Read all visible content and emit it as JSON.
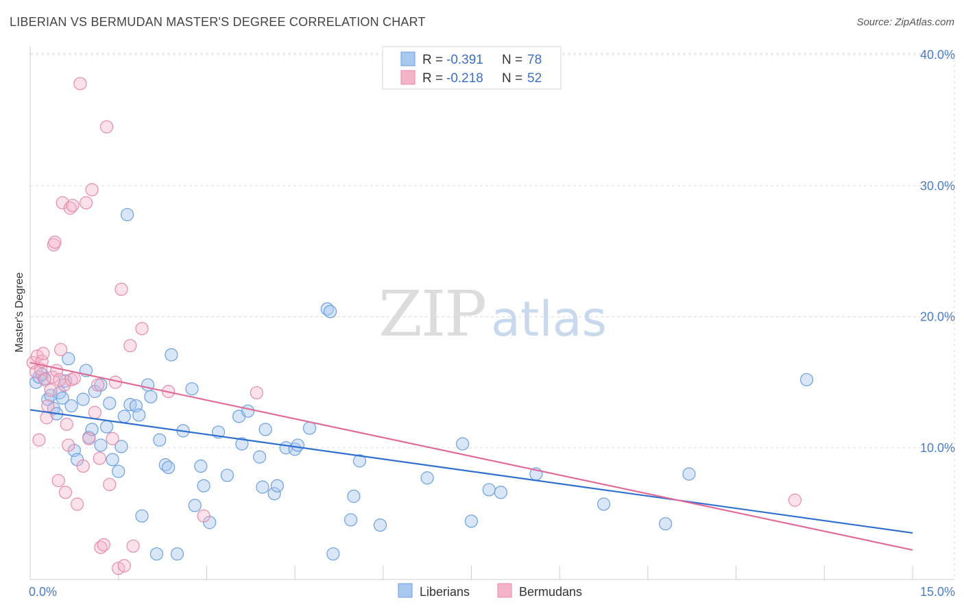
{
  "title": "LIBERIAN VS BERMUDAN MASTER'S DEGREE CORRELATION CHART",
  "source": "Source: ZipAtlas.com",
  "watermark": {
    "part1": "ZIP",
    "part2": "atlas"
  },
  "legend": {
    "rows": [
      {
        "r_label": "R = ",
        "r_value": "-0.391",
        "n_label": "N = ",
        "n_value": "78",
        "color": "#a9c8f0"
      },
      {
        "r_label": "R = ",
        "r_value": "-0.218",
        "n_label": "N = ",
        "n_value": "52",
        "color": "#f5b3c8"
      }
    ]
  },
  "chart_data": {
    "type": "scatter",
    "title": "LIBERIAN VS BERMUDAN MASTER'S DEGREE CORRELATION CHART",
    "xlabel": "",
    "ylabel": "Master's Degree",
    "xlim": [
      0,
      15
    ],
    "ylim": [
      0,
      40
    ],
    "x_tick_labels": [
      "0.0%",
      "15.0%"
    ],
    "y_ticks": [
      10,
      20,
      30,
      40
    ],
    "y_tick_labels": [
      "10.0%",
      "20.0%",
      "30.0%",
      "40.0%"
    ],
    "grid": true,
    "series": [
      {
        "name": "Liberians",
        "color": "#6a9fe0",
        "line_color": "#2f6fd0",
        "trend": {
          "x": [
            0,
            15
          ],
          "y": [
            12.9,
            3.5
          ]
        },
        "points": [
          [
            0.1,
            15.0
          ],
          [
            0.15,
            15.4
          ],
          [
            0.25,
            15.3
          ],
          [
            0.3,
            13.7
          ],
          [
            0.35,
            14.0
          ],
          [
            0.4,
            13.0
          ],
          [
            0.45,
            12.6
          ],
          [
            0.5,
            14.2
          ],
          [
            0.6,
            15.1
          ],
          [
            0.65,
            16.8
          ],
          [
            0.7,
            13.2
          ],
          [
            0.75,
            9.8
          ],
          [
            0.8,
            9.1
          ],
          [
            0.9,
            13.7
          ],
          [
            0.95,
            15.9
          ],
          [
            1.0,
            10.8
          ],
          [
            1.05,
            11.4
          ],
          [
            1.1,
            14.3
          ],
          [
            1.2,
            10.2
          ],
          [
            1.2,
            14.8
          ],
          [
            1.3,
            11.6
          ],
          [
            1.35,
            13.4
          ],
          [
            1.4,
            9.1
          ],
          [
            1.5,
            8.2
          ],
          [
            1.55,
            10.1
          ],
          [
            1.6,
            12.4
          ],
          [
            1.65,
            27.8
          ],
          [
            1.7,
            13.3
          ],
          [
            1.8,
            13.2
          ],
          [
            1.85,
            12.5
          ],
          [
            1.9,
            4.8
          ],
          [
            2.0,
            14.8
          ],
          [
            2.05,
            13.9
          ],
          [
            2.15,
            1.9
          ],
          [
            2.2,
            10.6
          ],
          [
            2.3,
            8.7
          ],
          [
            2.35,
            8.5
          ],
          [
            2.4,
            17.1
          ],
          [
            2.5,
            1.9
          ],
          [
            2.6,
            11.3
          ],
          [
            2.75,
            14.5
          ],
          [
            2.8,
            5.6
          ],
          [
            2.9,
            8.6
          ],
          [
            2.95,
            7.1
          ],
          [
            3.05,
            4.3
          ],
          [
            3.2,
            11.2
          ],
          [
            3.35,
            7.9
          ],
          [
            3.55,
            12.4
          ],
          [
            3.6,
            10.3
          ],
          [
            3.7,
            12.8
          ],
          [
            3.9,
            9.3
          ],
          [
            3.95,
            7.0
          ],
          [
            4.0,
            11.4
          ],
          [
            4.15,
            6.5
          ],
          [
            4.2,
            7.1
          ],
          [
            4.35,
            10.0
          ],
          [
            4.5,
            9.9
          ],
          [
            4.55,
            10.2
          ],
          [
            4.75,
            11.5
          ],
          [
            5.05,
            20.6
          ],
          [
            5.1,
            20.4
          ],
          [
            5.15,
            1.9
          ],
          [
            5.45,
            4.5
          ],
          [
            5.5,
            6.3
          ],
          [
            5.6,
            9.0
          ],
          [
            5.95,
            4.1
          ],
          [
            6.75,
            7.7
          ],
          [
            7.35,
            10.3
          ],
          [
            7.5,
            4.4
          ],
          [
            7.8,
            6.8
          ],
          [
            8.0,
            6.6
          ],
          [
            8.6,
            8.0
          ],
          [
            9.75,
            5.7
          ],
          [
            10.8,
            4.2
          ],
          [
            11.2,
            8.0
          ],
          [
            13.2,
            15.2
          ],
          [
            0.2,
            15.6
          ],
          [
            0.55,
            13.8
          ]
        ]
      },
      {
        "name": "Bermudans",
        "color": "#f3a6c0",
        "line_color": "#e06a98",
        "trend": {
          "x": [
            0,
            15
          ],
          "y": [
            16.5,
            2.2
          ]
        },
        "points": [
          [
            0.05,
            16.5
          ],
          [
            0.1,
            15.8
          ],
          [
            0.12,
            17.0
          ],
          [
            0.15,
            10.6
          ],
          [
            0.18,
            16.0
          ],
          [
            0.2,
            16.6
          ],
          [
            0.22,
            17.2
          ],
          [
            0.25,
            15.2
          ],
          [
            0.28,
            12.3
          ],
          [
            0.3,
            13.2
          ],
          [
            0.35,
            14.4
          ],
          [
            0.38,
            15.4
          ],
          [
            0.4,
            25.5
          ],
          [
            0.42,
            25.7
          ],
          [
            0.45,
            15.9
          ],
          [
            0.48,
            7.5
          ],
          [
            0.5,
            15.2
          ],
          [
            0.52,
            17.5
          ],
          [
            0.55,
            28.7
          ],
          [
            0.58,
            14.8
          ],
          [
            0.6,
            6.6
          ],
          [
            0.62,
            11.8
          ],
          [
            0.65,
            10.2
          ],
          [
            0.68,
            28.3
          ],
          [
            0.7,
            15.2
          ],
          [
            0.72,
            28.5
          ],
          [
            0.75,
            15.3
          ],
          [
            0.8,
            5.7
          ],
          [
            0.85,
            37.8
          ],
          [
            0.9,
            8.6
          ],
          [
            0.95,
            28.7
          ],
          [
            1.0,
            10.7
          ],
          [
            1.05,
            29.7
          ],
          [
            1.1,
            12.7
          ],
          [
            1.15,
            14.8
          ],
          [
            1.18,
            9.2
          ],
          [
            1.2,
            2.4
          ],
          [
            1.25,
            2.6
          ],
          [
            1.3,
            34.5
          ],
          [
            1.35,
            7.2
          ],
          [
            1.4,
            10.7
          ],
          [
            1.45,
            15.0
          ],
          [
            1.5,
            0.8
          ],
          [
            1.55,
            22.1
          ],
          [
            1.6,
            1.0
          ],
          [
            1.7,
            17.8
          ],
          [
            1.75,
            2.5
          ],
          [
            1.9,
            19.1
          ],
          [
            2.35,
            14.3
          ],
          [
            2.95,
            4.8
          ],
          [
            3.85,
            14.2
          ],
          [
            13.0,
            6.0
          ]
        ]
      }
    ]
  },
  "bottom_legend": [
    {
      "label": "Liberians",
      "color": "#a9c8f0"
    },
    {
      "label": "Bermudans",
      "color": "#f5b3c8"
    }
  ]
}
